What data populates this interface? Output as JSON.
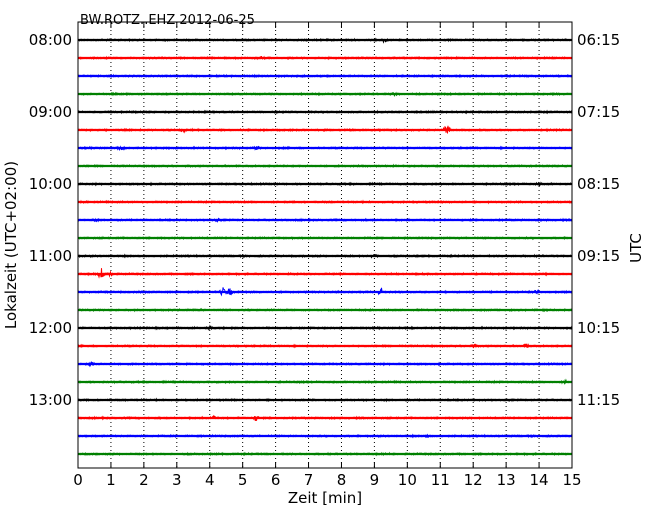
{
  "chart_data": {
    "type": "line",
    "title": "BW.ROTZ..EHZ 2012-06-25",
    "xlabel": "Zeit  [min]",
    "ylabel_left": "Lokalzeit (UTC+02:00)",
    "ylabel_right": "UTC",
    "xlim": [
      0,
      15
    ],
    "x_ticks": [
      "0",
      "1",
      "2",
      "3",
      "4",
      "5",
      "6",
      "7",
      "8",
      "9",
      "10",
      "11",
      "12",
      "13",
      "14",
      "15"
    ],
    "left_ticks": [
      "08:00",
      "09:00",
      "10:00",
      "11:00",
      "12:00",
      "13:00"
    ],
    "right_ticks": [
      "06:15",
      "07:15",
      "08:15",
      "09:15",
      "10:15",
      "11:15"
    ],
    "grid": "vertical-dotted",
    "colors": [
      "#000000",
      "#ff0000",
      "#0000ff",
      "#008000"
    ],
    "series": [
      {
        "start": "08:00",
        "events": [
          [
            9.3,
            0.35
          ]
        ]
      },
      {
        "start": "08:15",
        "events": [
          [
            5.6,
            0.25
          ]
        ]
      },
      {
        "start": "08:30",
        "events": []
      },
      {
        "start": "08:45",
        "events": [
          [
            9.6,
            0.3
          ]
        ]
      },
      {
        "start": "09:00",
        "events": []
      },
      {
        "start": "09:15",
        "events": [
          [
            3.2,
            0.3
          ],
          [
            11.2,
            1.0
          ]
        ]
      },
      {
        "start": "09:30",
        "events": [
          [
            1.3,
            0.2
          ],
          [
            5.4,
            0.35
          ]
        ]
      },
      {
        "start": "09:45",
        "events": []
      },
      {
        "start": "10:00",
        "events": [
          [
            14.0,
            0.25
          ]
        ]
      },
      {
        "start": "10:15",
        "events": []
      },
      {
        "start": "10:30",
        "events": [
          [
            0.5,
            0.3
          ],
          [
            4.2,
            0.25
          ]
        ]
      },
      {
        "start": "10:45",
        "events": []
      },
      {
        "start": "11:00",
        "events": [
          [
            9.0,
            0.4
          ]
        ]
      },
      {
        "start": "11:15",
        "events": [
          [
            0.7,
            1.0
          ],
          [
            1.0,
            0.6
          ]
        ]
      },
      {
        "start": "11:30",
        "events": [
          [
            4.4,
            0.7
          ],
          [
            4.6,
            0.6
          ],
          [
            9.2,
            0.7
          ],
          [
            13.9,
            0.4
          ]
        ]
      },
      {
        "start": "11:45",
        "events": []
      },
      {
        "start": "12:00",
        "events": [
          [
            4.0,
            0.25
          ]
        ]
      },
      {
        "start": "12:15",
        "events": [
          [
            12.0,
            0.3
          ],
          [
            13.6,
            0.4
          ]
        ]
      },
      {
        "start": "12:30",
        "events": [
          [
            0.4,
            0.45
          ]
        ]
      },
      {
        "start": "12:45",
        "events": [
          [
            14.8,
            0.2
          ]
        ]
      },
      {
        "start": "13:00",
        "events": []
      },
      {
        "start": "13:15",
        "events": [
          [
            4.1,
            0.3
          ],
          [
            5.4,
            0.45
          ]
        ]
      },
      {
        "start": "13:30",
        "events": [
          [
            10.6,
            0.3
          ]
        ]
      },
      {
        "start": "13:45",
        "events": []
      }
    ]
  }
}
